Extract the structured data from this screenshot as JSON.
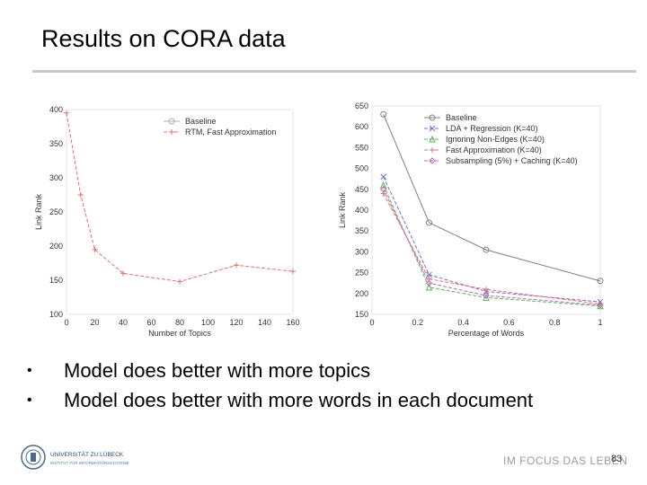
{
  "slide": {
    "title": "Results on CORA data",
    "bullets": [
      "Model does better with more topics",
      "Model does better with more words in each document"
    ],
    "footer": {
      "logo_text": "UNIVERSITÄT ZU LÜBECK",
      "logo_subtext": "INSTITUT FÜR INFORMATIONSSYSTEME",
      "slogan": "IM FOCUS DAS LEBEN",
      "page_number": "83"
    }
  },
  "chart_data": [
    {
      "type": "line",
      "xlabel": "Number of Topics",
      "ylabel": "Link Rank",
      "xlim": [
        0,
        160
      ],
      "ylim": [
        100,
        400
      ],
      "xticks": [
        0,
        20,
        40,
        60,
        80,
        100,
        120,
        140,
        160
      ],
      "yticks": [
        100,
        150,
        200,
        250,
        300,
        350,
        400
      ],
      "legend_position": "top-right",
      "series": [
        {
          "name": "Baseline",
          "color": "#b0b0b0",
          "marker": "circle",
          "x": [],
          "y": []
        },
        {
          "name": "RTM, Fast Approximation",
          "color": "#e07070",
          "marker": "plus",
          "x": [
            0,
            10,
            20,
            40,
            80,
            120,
            160
          ],
          "y": [
            395,
            275,
            195,
            160,
            148,
            172,
            163
          ]
        }
      ]
    },
    {
      "type": "line",
      "xlabel": "Percentage of Words",
      "ylabel": "Link Rank",
      "xlim": [
        0,
        1
      ],
      "ylim": [
        150,
        650
      ],
      "xticks": [
        0,
        0.2,
        0.4,
        0.6,
        0.8,
        1
      ],
      "xtick_labels": [
        "0",
        "0.2",
        "0.4",
        "0.6",
        "0.8",
        "1"
      ],
      "yticks": [
        150,
        200,
        250,
        300,
        350,
        400,
        450,
        500,
        550,
        600,
        650
      ],
      "legend_position": "top-right",
      "series": [
        {
          "name": "Baseline",
          "color": "#808080",
          "marker": "circle",
          "x": [
            0.05,
            0.25,
            0.5,
            1.0
          ],
          "y": [
            630,
            370,
            305,
            230
          ]
        },
        {
          "name": "LDA + Regression (K=40)",
          "color": "#7070c8",
          "marker": "x",
          "x": [
            0.05,
            0.25,
            0.5,
            1.0
          ],
          "y": [
            480,
            245,
            205,
            180
          ]
        },
        {
          "name": "Ignoring Non-Edges (K=40)",
          "color": "#60b060",
          "marker": "triangle",
          "x": [
            0.05,
            0.25,
            0.5,
            1.0
          ],
          "y": [
            460,
            215,
            190,
            170
          ]
        },
        {
          "name": "Fast Approximation (K=40)",
          "color": "#e07070",
          "marker": "plus",
          "x": [
            0.05,
            0.25,
            0.5,
            1.0
          ],
          "y": [
            440,
            235,
            210,
            175
          ]
        },
        {
          "name": "Subsampling (5%) + Caching (K=40)",
          "color": "#b070b0",
          "marker": "diamond",
          "x": [
            0.05,
            0.25,
            0.5,
            1.0
          ],
          "y": [
            450,
            225,
            195,
            172
          ]
        }
      ]
    }
  ]
}
